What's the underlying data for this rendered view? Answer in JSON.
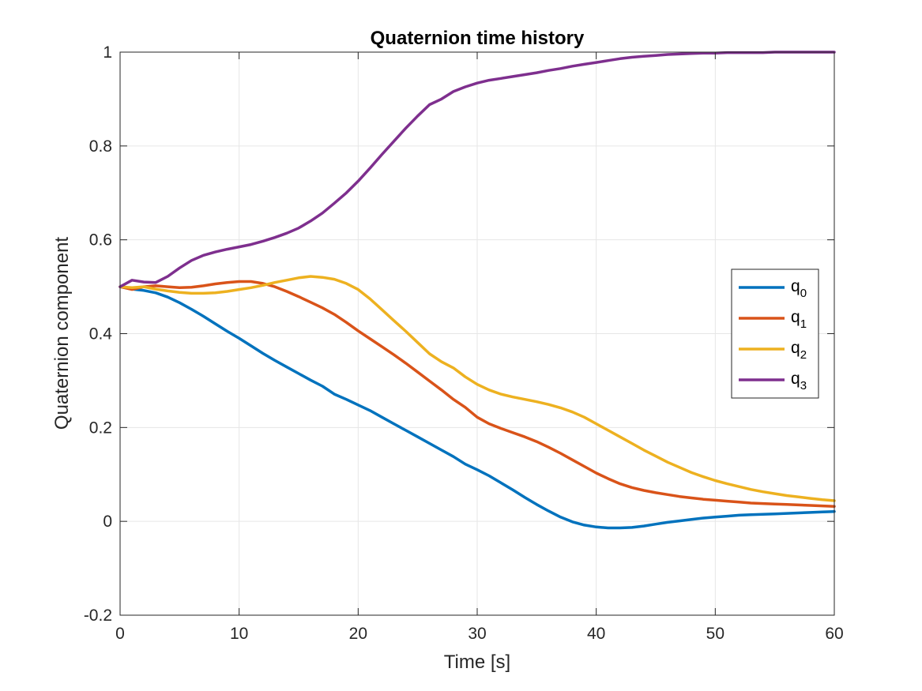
{
  "chart_data": {
    "type": "line",
    "title": "Quaternion time history",
    "xlabel": "Time [s]",
    "ylabel": "Quaternion component",
    "xlim": [
      0,
      60
    ],
    "ylim": [
      -0.2,
      1
    ],
    "xticks": [
      0,
      10,
      20,
      30,
      40,
      50,
      60
    ],
    "xtick_labels": [
      "0",
      "10",
      "20",
      "30",
      "40",
      "50",
      "60"
    ],
    "yticks": [
      -0.2,
      0,
      0.2,
      0.4,
      0.6,
      0.8,
      1
    ],
    "ytick_labels": [
      "-0.2",
      "0",
      "0.2",
      "0.4",
      "0.6",
      "0.8",
      "1"
    ],
    "grid": true,
    "legend_position": "right",
    "x": [
      0,
      1,
      2,
      3,
      4,
      5,
      6,
      7,
      8,
      9,
      10,
      11,
      12,
      13,
      14,
      15,
      16,
      17,
      18,
      19,
      20,
      21,
      22,
      23,
      24,
      25,
      26,
      27,
      28,
      29,
      30,
      31,
      32,
      33,
      34,
      35,
      36,
      37,
      38,
      39,
      40,
      41,
      42,
      43,
      44,
      45,
      46,
      47,
      48,
      49,
      50,
      51,
      52,
      53,
      54,
      55,
      56,
      57,
      58,
      59,
      60
    ],
    "series": [
      {
        "name_base": "q",
        "name_sub": "0",
        "color": "#0072BD",
        "values": [
          0.5,
          0.495,
          0.492,
          0.487,
          0.478,
          0.466,
          0.452,
          0.437,
          0.421,
          0.405,
          0.39,
          0.374,
          0.358,
          0.343,
          0.329,
          0.315,
          0.301,
          0.288,
          0.271,
          0.26,
          0.248,
          0.236,
          0.222,
          0.208,
          0.194,
          0.18,
          0.166,
          0.152,
          0.138,
          0.122,
          0.11,
          0.097,
          0.082,
          0.067,
          0.051,
          0.036,
          0.022,
          0.009,
          -0.001,
          -0.008,
          -0.012,
          -0.014,
          -0.014,
          -0.013,
          -0.01,
          -0.006,
          -0.002,
          0.001,
          0.004,
          0.007,
          0.009,
          0.011,
          0.013,
          0.014,
          0.015,
          0.016,
          0.017,
          0.018,
          0.019,
          0.02,
          0.021
        ]
      },
      {
        "name_base": "q",
        "name_sub": "1",
        "color": "#D95319",
        "values": [
          0.5,
          0.494,
          0.5,
          0.502,
          0.5,
          0.498,
          0.499,
          0.502,
          0.506,
          0.509,
          0.511,
          0.511,
          0.507,
          0.5,
          0.49,
          0.479,
          0.467,
          0.455,
          0.441,
          0.424,
          0.406,
          0.389,
          0.372,
          0.355,
          0.337,
          0.318,
          0.299,
          0.28,
          0.26,
          0.243,
          0.222,
          0.208,
          0.198,
          0.189,
          0.18,
          0.17,
          0.158,
          0.145,
          0.131,
          0.117,
          0.103,
          0.091,
          0.08,
          0.072,
          0.066,
          0.061,
          0.057,
          0.053,
          0.05,
          0.047,
          0.045,
          0.043,
          0.041,
          0.039,
          0.038,
          0.037,
          0.036,
          0.035,
          0.034,
          0.033,
          0.032
        ]
      },
      {
        "name_base": "q",
        "name_sub": "2",
        "color": "#EDB120",
        "values": [
          0.5,
          0.498,
          0.5,
          0.495,
          0.491,
          0.488,
          0.486,
          0.486,
          0.487,
          0.49,
          0.494,
          0.498,
          0.503,
          0.509,
          0.514,
          0.519,
          0.522,
          0.52,
          0.516,
          0.507,
          0.494,
          0.474,
          0.451,
          0.428,
          0.405,
          0.381,
          0.357,
          0.34,
          0.327,
          0.308,
          0.292,
          0.28,
          0.271,
          0.265,
          0.26,
          0.255,
          0.249,
          0.242,
          0.233,
          0.222,
          0.208,
          0.194,
          0.18,
          0.166,
          0.152,
          0.139,
          0.126,
          0.115,
          0.104,
          0.095,
          0.087,
          0.08,
          0.074,
          0.068,
          0.063,
          0.059,
          0.055,
          0.052,
          0.049,
          0.046,
          0.044
        ]
      },
      {
        "name_base": "q",
        "name_sub": "3",
        "color": "#7E2F8E",
        "values": [
          0.5,
          0.514,
          0.51,
          0.509,
          0.522,
          0.54,
          0.556,
          0.567,
          0.574,
          0.58,
          0.585,
          0.59,
          0.597,
          0.605,
          0.614,
          0.625,
          0.64,
          0.657,
          0.678,
          0.7,
          0.725,
          0.753,
          0.782,
          0.81,
          0.838,
          0.864,
          0.888,
          0.9,
          0.916,
          0.926,
          0.934,
          0.94,
          0.944,
          0.948,
          0.952,
          0.956,
          0.961,
          0.965,
          0.97,
          0.974,
          0.978,
          0.982,
          0.986,
          0.989,
          0.991,
          0.993,
          0.995,
          0.996,
          0.997,
          0.998,
          0.998,
          0.999,
          0.999,
          0.999,
          0.999,
          1.0,
          1.0,
          1.0,
          1.0,
          1.0,
          1.0
        ]
      }
    ]
  }
}
